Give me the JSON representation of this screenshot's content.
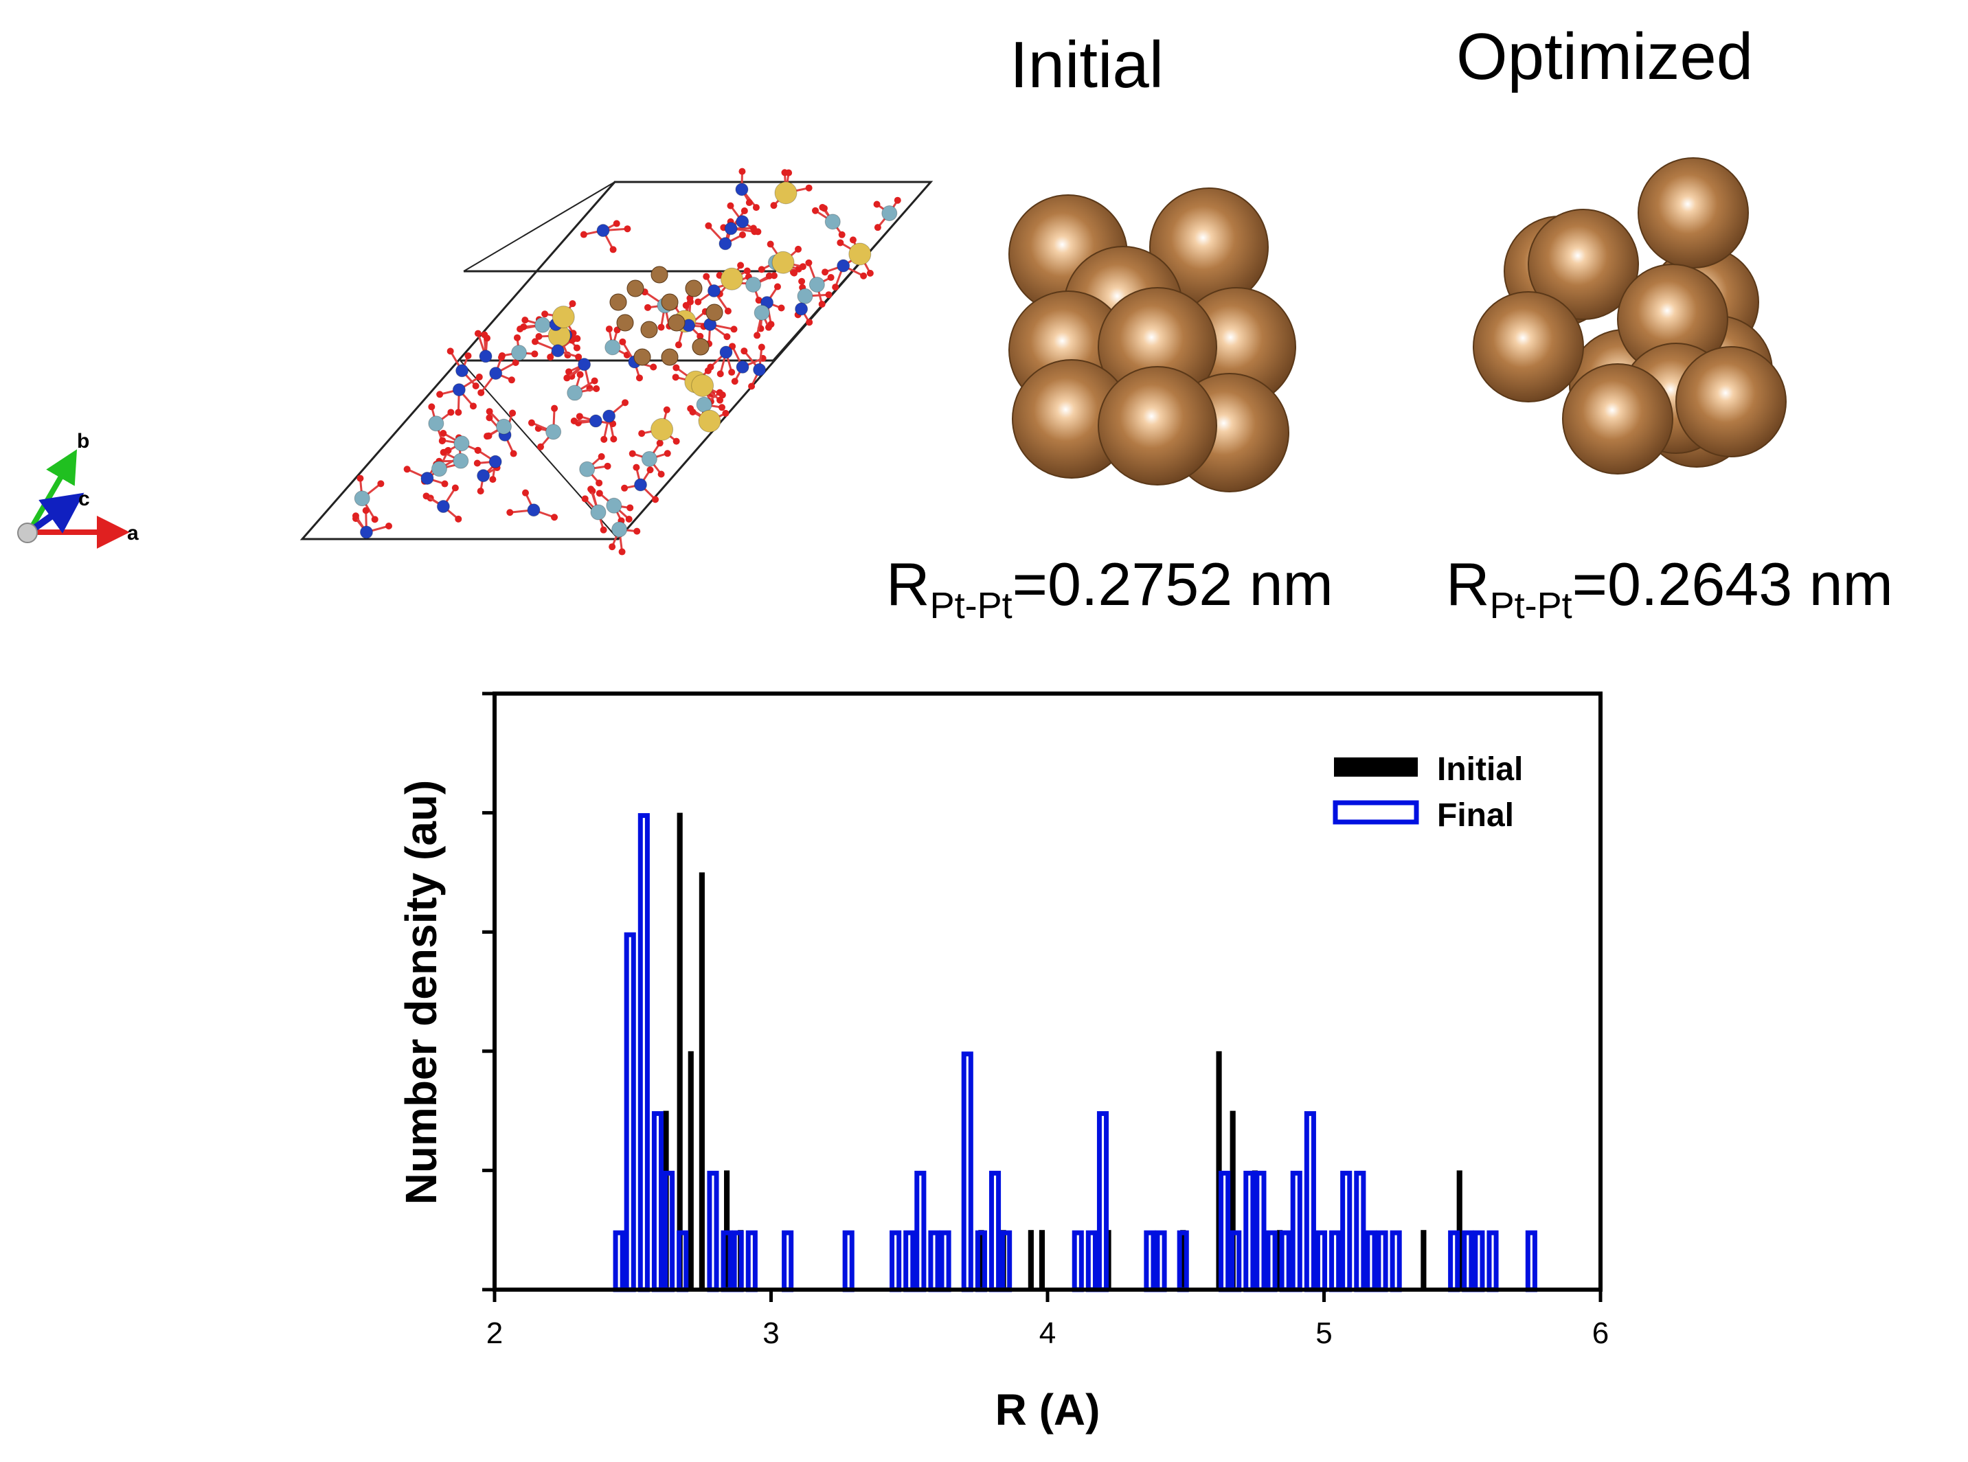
{
  "structure": {
    "axes_icon": {
      "a": "a",
      "b": "b",
      "c": "c"
    },
    "colors": {
      "pt": "#A0703F",
      "si": "#E0C050",
      "al": "#7FAFC0",
      "n": "#2040C0",
      "o": "#E02020"
    }
  },
  "clusters": {
    "initial": {
      "title": "Initial",
      "r_prefix": "R",
      "r_sub": "Pt-Pt",
      "r_value": "=0.2752 nm"
    },
    "optimized": {
      "title": "Optimized",
      "r_prefix": "R",
      "r_sub": "Pt-Pt",
      "r_value": "=0.2643 nm"
    }
  },
  "chart_data": {
    "type": "bar",
    "title": "",
    "xlabel": "R (A)",
    "ylabel": "Number density (au)",
    "xlim": [
      2,
      6
    ],
    "ylim": [
      0,
      10
    ],
    "xticks": [
      "2",
      "3",
      "4",
      "5",
      "6"
    ],
    "bin_width": 0.045,
    "legend_position": "top-right",
    "series": [
      {
        "name": "Initial",
        "style": "filled",
        "color": "#000000",
        "x": [
          2.62,
          2.67,
          2.71,
          2.75,
          2.84,
          2.89,
          3.76,
          3.84,
          3.94,
          3.98,
          4.22,
          4.49,
          4.62,
          4.67,
          4.75,
          4.84,
          5.36,
          5.49
        ],
        "y": [
          3,
          8,
          4,
          7,
          2,
          1,
          1,
          1,
          1,
          1,
          1,
          1,
          4,
          3,
          2,
          1,
          1,
          2
        ]
      },
      {
        "name": "Final",
        "style": "outline",
        "color": "#0010E0",
        "x": [
          2.45,
          2.49,
          2.54,
          2.59,
          2.63,
          2.68,
          2.79,
          2.84,
          2.88,
          2.93,
          3.06,
          3.28,
          3.45,
          3.5,
          3.54,
          3.59,
          3.63,
          3.71,
          3.76,
          3.81,
          3.85,
          4.11,
          4.16,
          4.2,
          4.37,
          4.41,
          4.49,
          4.64,
          4.68,
          4.73,
          4.77,
          4.81,
          4.86,
          4.9,
          4.95,
          4.99,
          5.04,
          5.08,
          5.13,
          5.17,
          5.21,
          5.26,
          5.47,
          5.52,
          5.56,
          5.61,
          5.75
        ],
        "y": [
          1,
          6,
          8,
          3,
          2,
          1,
          2,
          1,
          1,
          1,
          1,
          1,
          1,
          1,
          2,
          1,
          1,
          4,
          1,
          2,
          1,
          1,
          1,
          3,
          1,
          1,
          1,
          2,
          1,
          2,
          2,
          1,
          1,
          2,
          3,
          1,
          1,
          2,
          2,
          1,
          1,
          1,
          1,
          1,
          1,
          1,
          1
        ]
      }
    ]
  }
}
